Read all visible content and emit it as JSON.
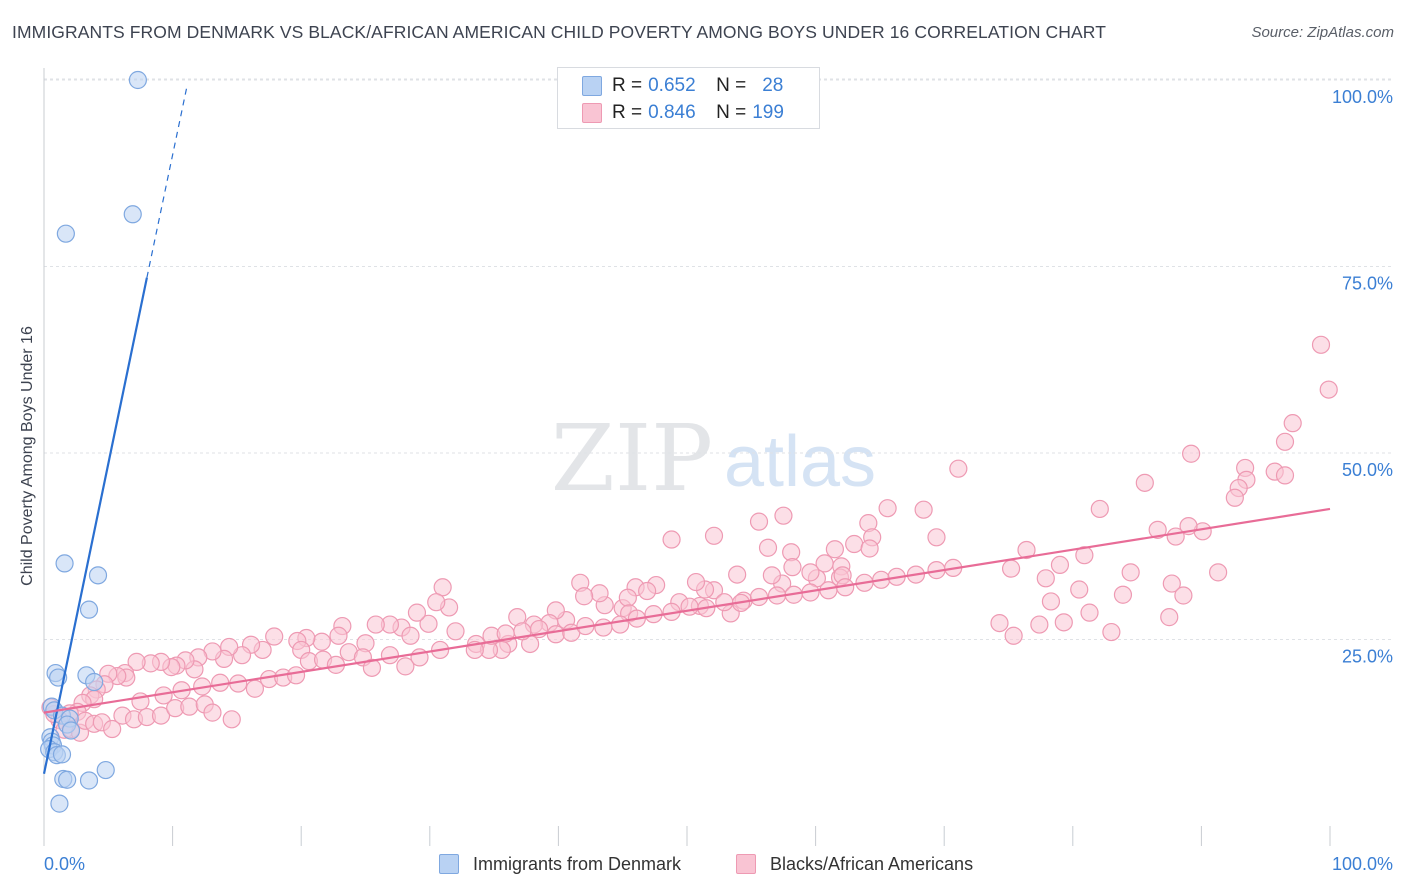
{
  "title": "IMMIGRANTS FROM DENMARK VS BLACK/AFRICAN AMERICAN CHILD POVERTY AMONG BOYS UNDER 16 CORRELATION CHART",
  "source": "Source: ZipAtlas.com",
  "watermark": {
    "part1": "ZIP",
    "part2": "atlas"
  },
  "colors": {
    "blue_fill": "#b9d2f3",
    "blue_stroke": "#7fa8e0",
    "blue_line": "#2a6fd0",
    "pink_fill": "#f9c4d3",
    "pink_stroke": "#ee9ab3",
    "pink_line": "#e86c97",
    "axis_text": "#3b7fd4",
    "grid": "#dfe2e6"
  },
  "legend_top": [
    {
      "r_label": "R =",
      "r_value": "0.652",
      "n_label": "N =",
      "n_value": "28",
      "color": "blue"
    },
    {
      "r_label": "R =",
      "r_value": "0.846",
      "n_label": "N =",
      "n_value": "199",
      "color": "pink"
    }
  ],
  "legend_bottom": [
    {
      "label": "Immigrants from Denmark",
      "color": "blue"
    },
    {
      "label": "Blacks/African Americans",
      "color": "pink"
    }
  ],
  "chart_data": {
    "type": "scatter",
    "title": "IMMIGRANTS FROM DENMARK VS BLACK/AFRICAN AMERICAN CHILD POVERTY AMONG BOYS UNDER 16 CORRELATION CHART",
    "xlabel": "",
    "ylabel": "Child Poverty Among Boys Under 16",
    "xlim": [
      0,
      100
    ],
    "ylim": [
      0,
      100
    ],
    "x_tick_labels": [
      "0.0%",
      "100.0%"
    ],
    "y_ticks": [
      25,
      50,
      75,
      100
    ],
    "y_tick_labels": [
      "25.0%",
      "50.0%",
      "75.0%",
      "100.0%"
    ],
    "grid": true,
    "series": [
      {
        "name": "Immigrants from Denmark",
        "color": "blue",
        "trend": {
          "x": [
            0,
            8.0
          ],
          "y": [
            7.0,
            73.5
          ],
          "dashed_to": [
            11.1,
            99.0
          ]
        },
        "points": [
          [
            7.3,
            100.0
          ],
          [
            6.9,
            82.0
          ],
          [
            1.7,
            79.4
          ],
          [
            3.5,
            29.0
          ],
          [
            1.6,
            35.2
          ],
          [
            4.2,
            33.6
          ],
          [
            0.9,
            20.5
          ],
          [
            1.1,
            19.9
          ],
          [
            3.3,
            20.2
          ],
          [
            3.9,
            19.3
          ],
          [
            0.6,
            16.0
          ],
          [
            0.8,
            15.5
          ],
          [
            1.4,
            14.8
          ],
          [
            2.0,
            14.4
          ],
          [
            1.8,
            13.6
          ],
          [
            2.1,
            12.8
          ],
          [
            0.5,
            11.9
          ],
          [
            0.6,
            11.3
          ],
          [
            0.7,
            10.8
          ],
          [
            0.4,
            10.3
          ],
          [
            0.8,
            9.9
          ],
          [
            1.0,
            9.5
          ],
          [
            1.4,
            9.6
          ],
          [
            4.8,
            7.5
          ],
          [
            1.5,
            6.3
          ],
          [
            1.8,
            6.2
          ],
          [
            3.5,
            6.1
          ],
          [
            1.2,
            3.0
          ]
        ]
      },
      {
        "name": "Blacks/African Americans",
        "color": "pink",
        "trend": {
          "x": [
            0,
            100
          ],
          "y": [
            15.2,
            42.5
          ]
        },
        "points": [
          [
            99.3,
            64.5
          ],
          [
            99.9,
            58.5
          ],
          [
            97.1,
            54.0
          ],
          [
            96.5,
            51.5
          ],
          [
            93.4,
            48.0
          ],
          [
            95.7,
            47.5
          ],
          [
            96.5,
            47.0
          ],
          [
            93.5,
            46.4
          ],
          [
            92.9,
            45.3
          ],
          [
            92.6,
            44.0
          ],
          [
            89.2,
            49.9
          ],
          [
            85.6,
            46.0
          ],
          [
            82.1,
            42.5
          ],
          [
            90.1,
            39.5
          ],
          [
            89.0,
            40.2
          ],
          [
            86.6,
            39.7
          ],
          [
            88.0,
            38.8
          ],
          [
            80.9,
            36.3
          ],
          [
            84.5,
            34.0
          ],
          [
            91.3,
            34.0
          ],
          [
            87.7,
            32.5
          ],
          [
            83.9,
            31.0
          ],
          [
            88.6,
            30.9
          ],
          [
            87.5,
            28.0
          ],
          [
            79.0,
            35.0
          ],
          [
            80.5,
            31.7
          ],
          [
            77.9,
            33.2
          ],
          [
            76.4,
            37.0
          ],
          [
            75.2,
            34.5
          ],
          [
            78.3,
            30.1
          ],
          [
            81.3,
            28.6
          ],
          [
            83.0,
            26.0
          ],
          [
            79.3,
            27.3
          ],
          [
            74.3,
            27.2
          ],
          [
            77.4,
            27.0
          ],
          [
            75.4,
            25.5
          ],
          [
            71.1,
            47.9
          ],
          [
            68.4,
            42.4
          ],
          [
            69.4,
            38.7
          ],
          [
            65.6,
            42.6
          ],
          [
            64.1,
            40.6
          ],
          [
            64.4,
            38.7
          ],
          [
            63.0,
            37.8
          ],
          [
            64.2,
            37.2
          ],
          [
            62.0,
            34.8
          ],
          [
            61.5,
            37.1
          ],
          [
            60.7,
            35.2
          ],
          [
            61.9,
            33.3
          ],
          [
            62.1,
            33.6
          ],
          [
            60.1,
            33.2
          ],
          [
            59.6,
            34.0
          ],
          [
            57.5,
            41.6
          ],
          [
            55.6,
            40.8
          ],
          [
            56.3,
            37.3
          ],
          [
            58.1,
            36.7
          ],
          [
            58.2,
            34.7
          ],
          [
            57.4,
            32.5
          ],
          [
            56.6,
            33.6
          ],
          [
            52.1,
            38.9
          ],
          [
            53.9,
            33.7
          ],
          [
            52.1,
            31.6
          ],
          [
            51.4,
            31.7
          ],
          [
            49.4,
            30.0
          ],
          [
            51.0,
            29.5
          ],
          [
            53.4,
            28.5
          ],
          [
            54.4,
            30.2
          ],
          [
            48.8,
            38.4
          ],
          [
            47.6,
            32.3
          ],
          [
            50.7,
            32.7
          ],
          [
            46.0,
            32.0
          ],
          [
            46.9,
            31.5
          ],
          [
            45.0,
            29.2
          ],
          [
            45.4,
            30.6
          ],
          [
            45.5,
            28.5
          ],
          [
            43.6,
            29.6
          ],
          [
            43.2,
            31.2
          ],
          [
            41.7,
            32.6
          ],
          [
            42.0,
            30.8
          ],
          [
            40.6,
            27.6
          ],
          [
            39.8,
            28.9
          ],
          [
            39.3,
            27.2
          ],
          [
            38.1,
            27.0
          ],
          [
            36.8,
            28.0
          ],
          [
            37.8,
            24.4
          ],
          [
            36.1,
            24.4
          ],
          [
            35.6,
            23.6
          ],
          [
            33.6,
            24.4
          ],
          [
            34.6,
            23.6
          ],
          [
            31.0,
            32.0
          ],
          [
            31.5,
            29.3
          ],
          [
            30.5,
            30.0
          ],
          [
            29.9,
            27.1
          ],
          [
            29.0,
            28.6
          ],
          [
            27.8,
            26.6
          ],
          [
            26.9,
            27.0
          ],
          [
            25.8,
            27.0
          ],
          [
            28.5,
            25.5
          ],
          [
            25.0,
            24.5
          ],
          [
            23.2,
            26.8
          ],
          [
            22.9,
            25.5
          ],
          [
            21.6,
            24.7
          ],
          [
            20.4,
            25.2
          ],
          [
            19.7,
            24.8
          ],
          [
            20.0,
            23.6
          ],
          [
            17.9,
            25.4
          ],
          [
            17.0,
            23.6
          ],
          [
            16.1,
            24.3
          ],
          [
            15.4,
            22.9
          ],
          [
            14.4,
            24.0
          ],
          [
            14.0,
            22.4
          ],
          [
            13.1,
            23.4
          ],
          [
            12.0,
            22.6
          ],
          [
            11.7,
            21.0
          ],
          [
            11.0,
            22.2
          ],
          [
            10.3,
            21.5
          ],
          [
            9.9,
            21.3
          ],
          [
            9.1,
            22.0
          ],
          [
            8.3,
            21.8
          ],
          [
            7.2,
            22.0
          ],
          [
            6.3,
            20.5
          ],
          [
            6.4,
            19.9
          ],
          [
            5.7,
            20.1
          ],
          [
            5.0,
            20.4
          ],
          [
            4.7,
            19.0
          ],
          [
            4.1,
            18.3
          ],
          [
            3.6,
            17.5
          ],
          [
            3.9,
            17.0
          ],
          [
            3.0,
            16.5
          ],
          [
            2.6,
            15.3
          ],
          [
            2.0,
            15.1
          ],
          [
            1.2,
            14.2
          ],
          [
            0.8,
            15.0
          ],
          [
            0.5,
            15.9
          ],
          [
            1.6,
            12.9
          ],
          [
            2.1,
            13.0
          ],
          [
            2.8,
            12.5
          ],
          [
            3.2,
            14.1
          ],
          [
            3.9,
            13.7
          ],
          [
            4.5,
            13.9
          ],
          [
            5.3,
            13.0
          ],
          [
            6.1,
            14.8
          ],
          [
            7.0,
            14.3
          ],
          [
            8.0,
            14.6
          ],
          [
            9.1,
            14.8
          ],
          [
            10.2,
            15.8
          ],
          [
            11.3,
            16.0
          ],
          [
            12.5,
            16.3
          ],
          [
            13.1,
            15.2
          ],
          [
            14.6,
            14.3
          ],
          [
            7.5,
            16.7
          ],
          [
            9.3,
            17.5
          ],
          [
            10.7,
            18.2
          ],
          [
            12.3,
            18.7
          ],
          [
            13.7,
            19.2
          ],
          [
            15.1,
            19.1
          ],
          [
            16.4,
            18.4
          ],
          [
            17.5,
            19.7
          ],
          [
            18.6,
            19.9
          ],
          [
            19.6,
            20.2
          ],
          [
            20.6,
            22.1
          ],
          [
            21.7,
            22.3
          ],
          [
            22.7,
            21.6
          ],
          [
            23.7,
            23.3
          ],
          [
            24.8,
            22.6
          ],
          [
            25.5,
            21.2
          ],
          [
            26.9,
            22.9
          ],
          [
            28.1,
            21.4
          ],
          [
            29.2,
            22.6
          ],
          [
            30.8,
            23.6
          ],
          [
            32.0,
            26.1
          ],
          [
            33.5,
            23.6
          ],
          [
            34.8,
            25.5
          ],
          [
            35.9,
            25.8
          ],
          [
            37.2,
            26.1
          ],
          [
            38.5,
            26.4
          ],
          [
            39.8,
            25.7
          ],
          [
            41.0,
            25.9
          ],
          [
            42.1,
            26.8
          ],
          [
            43.5,
            26.6
          ],
          [
            44.8,
            27.0
          ],
          [
            46.1,
            27.8
          ],
          [
            47.4,
            28.4
          ],
          [
            48.8,
            28.7
          ],
          [
            50.2,
            29.4
          ],
          [
            51.5,
            29.2
          ],
          [
            52.9,
            30.0
          ],
          [
            54.2,
            29.9
          ],
          [
            55.6,
            30.7
          ],
          [
            57.0,
            30.9
          ],
          [
            58.3,
            31.0
          ],
          [
            59.6,
            31.3
          ],
          [
            61.0,
            31.6
          ],
          [
            62.3,
            32.0
          ],
          [
            63.8,
            32.6
          ],
          [
            65.1,
            33.0
          ],
          [
            66.3,
            33.4
          ],
          [
            67.8,
            33.7
          ],
          [
            69.4,
            34.3
          ],
          [
            70.7,
            34.6
          ]
        ]
      }
    ]
  }
}
